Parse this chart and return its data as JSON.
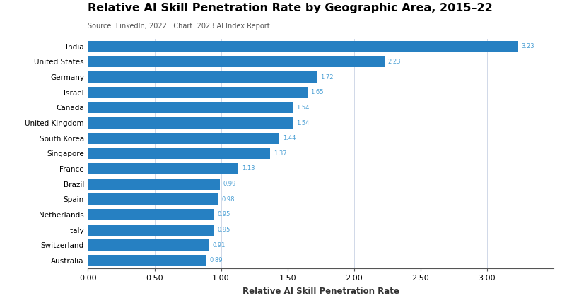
{
  "title": "Relative AI Skill Penetration Rate by Geographic Area, 2015–22",
  "subtitle": "Source: LinkedIn, 2022 | Chart: 2023 AI Index Report",
  "xlabel": "Relative AI Skill Penetration Rate",
  "countries": [
    "India",
    "United States",
    "Germany",
    "Israel",
    "Canada",
    "United Kingdom",
    "South Korea",
    "Singapore",
    "France",
    "Brazil",
    "Spain",
    "Netherlands",
    "Italy",
    "Switzerland",
    "Australia"
  ],
  "values": [
    3.23,
    2.23,
    1.72,
    1.65,
    1.54,
    1.54,
    1.44,
    1.37,
    1.13,
    0.99,
    0.98,
    0.95,
    0.95,
    0.91,
    0.89
  ],
  "bar_color": "#2680C2",
  "label_color": "#4a9fd4",
  "background_color": "#ffffff",
  "xlim": [
    0,
    3.5
  ],
  "xticks": [
    0.0,
    0.5,
    1.0,
    1.5,
    2.0,
    2.5,
    3.0
  ],
  "xtick_labels": [
    "0.00",
    "0.50",
    "1.00",
    "1.50",
    "2.00",
    "2.50",
    "3.00"
  ],
  "title_fontsize": 11.5,
  "subtitle_fontsize": 7.0,
  "xlabel_fontsize": 8.5,
  "ytick_fontsize": 7.5,
  "xtick_fontsize": 8.0,
  "label_fontsize": 6.0,
  "bar_height": 0.75
}
